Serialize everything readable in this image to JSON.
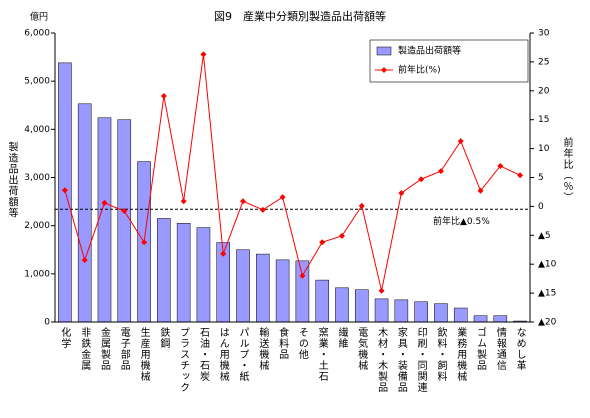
{
  "chart_data": {
    "type": "bar_line",
    "title": "図9　産業中分類別製造品出荷額等",
    "y_unit": "億円",
    "ylabel": "製造品出荷額等",
    "y2label": "前年比（％）",
    "annotation": "前年比▲0.5%",
    "reference_line": -0.5,
    "categories": [
      "化学",
      "非鉄金属",
      "金属製品",
      "電子部品",
      "生産用機械",
      "鉄鋼",
      "プラスチック",
      "石油・石炭",
      "はん用機械",
      "パルプ・紙",
      "輸送機械",
      "食料品",
      "その他",
      "窯業・土石",
      "繊維",
      "電気機械",
      "木材・木製品",
      "家具・装備品",
      "印刷・同関連",
      "飲料・飼料",
      "業務用機械",
      "ゴム製品",
      "情報通信",
      "なめし革"
    ],
    "series": [
      {
        "name": "製造品出荷額等",
        "color": "#9999ff",
        "values": [
          5380,
          4530,
          4240,
          4200,
          3330,
          2150,
          2050,
          1960,
          1650,
          1500,
          1410,
          1290,
          1270,
          870,
          710,
          670,
          480,
          460,
          420,
          380,
          290,
          130,
          130,
          20
        ]
      },
      {
        "name": "前年比(%)",
        "color": "#ff0000",
        "axis": "y2",
        "values": [
          2.8,
          -9.3,
          0.6,
          -0.8,
          -6.2,
          19.1,
          0.9,
          26.3,
          -8.2,
          0.9,
          -0.6,
          1.6,
          -12.0,
          -6.2,
          -5.1,
          0.1,
          -14.6,
          2.3,
          4.7,
          6.1,
          11.3,
          2.7,
          7.0,
          5.4
        ]
      }
    ],
    "ylim": [
      0,
      6000
    ],
    "yticks": [
      0,
      {
        "value": 1000,
        "label": "1,000"
      },
      {
        "value": 2000,
        "label": "2,000"
      },
      {
        "value": 3000,
        "label": "3,000"
      },
      {
        "value": 4000,
        "label": "4,000"
      },
      {
        "value": 5000,
        "label": "5,000"
      },
      {
        "value": 6000,
        "label": "6,000"
      }
    ],
    "y2lim": [
      -20,
      30
    ],
    "y2ticks": [
      {
        "value": -20,
        "label": "▲20"
      },
      {
        "value": -15,
        "label": "▲15"
      },
      {
        "value": -10,
        "label": "▲10"
      },
      {
        "value": -5,
        "label": "▲5"
      },
      0,
      5,
      10,
      15,
      20,
      25,
      30
    ],
    "grid": false
  }
}
